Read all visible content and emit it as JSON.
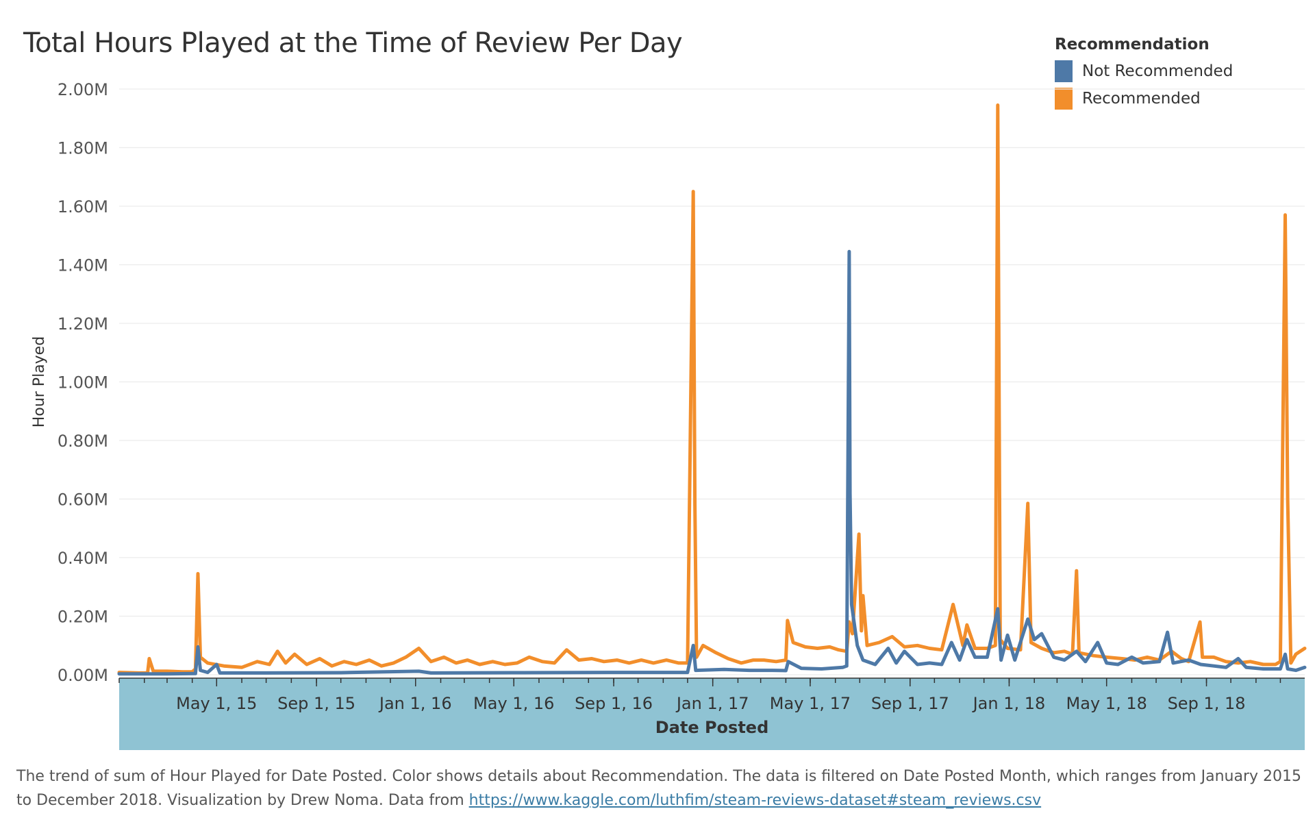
{
  "title": "Total Hours Played at the Time of Review Per Day",
  "legend": {
    "title": "Recommendation",
    "items": [
      {
        "label": "Not Recommended",
        "color": "#4e79a7"
      },
      {
        "label": "Recommended",
        "color": "#f28e2b"
      }
    ]
  },
  "caption": {
    "text": "The trend of sum of Hour Played for Date Posted.  Color shows details about Recommendation. The data is filtered on Date Posted Month, which ranges from January 2015 to December 2018. Visualization by Drew Noma. Data from ",
    "link": "https://www.kaggle.com/luthfim/steam-reviews-dataset#steam_reviews.csv"
  },
  "chart_data": {
    "type": "line",
    "title": "Total Hours Played at the Time of Review Per Day",
    "xlabel": "Date Posted",
    "ylabel": "Hour Played",
    "xlim": [
      "2015-01-01",
      "2018-12-31"
    ],
    "ylim": [
      0,
      2000000
    ],
    "y_ticks": [
      0,
      200000,
      400000,
      600000,
      800000,
      1000000,
      1200000,
      1400000,
      1600000,
      1800000,
      2000000
    ],
    "y_tick_labels": [
      "0.00M",
      "0.20M",
      "0.40M",
      "0.60M",
      "0.80M",
      "1.00M",
      "1.20M",
      "1.40M",
      "1.60M",
      "1.80M",
      "2.00M"
    ],
    "x_ticks": [
      "2015-05-01",
      "2015-09-01",
      "2016-01-01",
      "2016-05-01",
      "2016-09-01",
      "2017-01-01",
      "2017-05-01",
      "2017-09-01",
      "2018-01-01",
      "2018-05-01",
      "2018-09-01"
    ],
    "x_tick_labels": [
      "May 1, 15",
      "Sep 1, 15",
      "Jan 1, 16",
      "May 1, 16",
      "Sep 1, 16",
      "Jan 1, 17",
      "May 1, 17",
      "Sep 1, 17",
      "Jan 1, 18",
      "May 1, 18",
      "Sep 1, 18"
    ],
    "grid": "horizontal",
    "legend_position": "top-right",
    "series": [
      {
        "name": "Recommended",
        "color": "#f28e2b",
        "points": [
          [
            "2015-01-01",
            8000
          ],
          [
            "2015-01-25",
            6000
          ],
          [
            "2015-02-05",
            6000
          ],
          [
            "2015-02-07",
            55000
          ],
          [
            "2015-02-12",
            12000
          ],
          [
            "2015-03-01",
            12000
          ],
          [
            "2015-03-20",
            10000
          ],
          [
            "2015-04-01",
            10000
          ],
          [
            "2015-04-05",
            20000
          ],
          [
            "2015-04-08",
            345000
          ],
          [
            "2015-04-11",
            60000
          ],
          [
            "2015-04-20",
            40000
          ],
          [
            "2015-05-10",
            30000
          ],
          [
            "2015-06-01",
            25000
          ],
          [
            "2015-06-20",
            45000
          ],
          [
            "2015-07-05",
            35000
          ],
          [
            "2015-07-15",
            80000
          ],
          [
            "2015-07-25",
            40000
          ],
          [
            "2015-08-05",
            70000
          ],
          [
            "2015-08-20",
            35000
          ],
          [
            "2015-09-05",
            55000
          ],
          [
            "2015-09-20",
            30000
          ],
          [
            "2015-10-05",
            45000
          ],
          [
            "2015-10-20",
            35000
          ],
          [
            "2015-11-05",
            50000
          ],
          [
            "2015-11-20",
            30000
          ],
          [
            "2015-12-05",
            40000
          ],
          [
            "2015-12-20",
            60000
          ],
          [
            "2016-01-05",
            90000
          ],
          [
            "2016-01-20",
            45000
          ],
          [
            "2016-02-05",
            60000
          ],
          [
            "2016-02-20",
            40000
          ],
          [
            "2016-03-05",
            50000
          ],
          [
            "2016-03-20",
            35000
          ],
          [
            "2016-04-05",
            45000
          ],
          [
            "2016-04-20",
            35000
          ],
          [
            "2016-05-05",
            40000
          ],
          [
            "2016-05-20",
            60000
          ],
          [
            "2016-06-05",
            45000
          ],
          [
            "2016-06-20",
            40000
          ],
          [
            "2016-07-05",
            85000
          ],
          [
            "2016-07-20",
            50000
          ],
          [
            "2016-08-05",
            55000
          ],
          [
            "2016-08-20",
            45000
          ],
          [
            "2016-09-05",
            50000
          ],
          [
            "2016-09-20",
            40000
          ],
          [
            "2016-10-05",
            50000
          ],
          [
            "2016-10-20",
            40000
          ],
          [
            "2016-11-05",
            50000
          ],
          [
            "2016-11-20",
            40000
          ],
          [
            "2016-12-01",
            40000
          ],
          [
            "2016-12-08",
            1650000
          ],
          [
            "2016-12-10",
            580000
          ],
          [
            "2016-12-12",
            60000
          ],
          [
            "2016-12-20",
            100000
          ],
          [
            "2017-01-05",
            75000
          ],
          [
            "2017-01-20",
            55000
          ],
          [
            "2017-02-05",
            40000
          ],
          [
            "2017-02-20",
            50000
          ],
          [
            "2017-03-05",
            50000
          ],
          [
            "2017-03-20",
            45000
          ],
          [
            "2017-04-01",
            50000
          ],
          [
            "2017-04-03",
            185000
          ],
          [
            "2017-04-10",
            110000
          ],
          [
            "2017-04-25",
            95000
          ],
          [
            "2017-05-10",
            90000
          ],
          [
            "2017-05-25",
            95000
          ],
          [
            "2017-06-05",
            85000
          ],
          [
            "2017-06-15",
            80000
          ],
          [
            "2017-06-18",
            180000
          ],
          [
            "2017-06-22",
            140000
          ],
          [
            "2017-06-30",
            480000
          ],
          [
            "2017-07-03",
            150000
          ],
          [
            "2017-07-05",
            270000
          ],
          [
            "2017-07-10",
            100000
          ],
          [
            "2017-07-25",
            110000
          ],
          [
            "2017-08-10",
            130000
          ],
          [
            "2017-08-25",
            95000
          ],
          [
            "2017-09-10",
            100000
          ],
          [
            "2017-09-25",
            90000
          ],
          [
            "2017-10-10",
            85000
          ],
          [
            "2017-10-24",
            240000
          ],
          [
            "2017-11-05",
            100000
          ],
          [
            "2017-11-10",
            170000
          ],
          [
            "2017-11-20",
            90000
          ],
          [
            "2017-12-05",
            90000
          ],
          [
            "2017-12-15",
            100000
          ],
          [
            "2017-12-18",
            1945000
          ],
          [
            "2017-12-21",
            120000
          ],
          [
            "2017-12-30",
            90000
          ],
          [
            "2018-01-15",
            85000
          ],
          [
            "2018-01-24",
            585000
          ],
          [
            "2018-01-28",
            110000
          ],
          [
            "2018-02-10",
            90000
          ],
          [
            "2018-02-25",
            75000
          ],
          [
            "2018-03-10",
            80000
          ],
          [
            "2018-03-20",
            70000
          ],
          [
            "2018-03-25",
            355000
          ],
          [
            "2018-03-28",
            75000
          ],
          [
            "2018-04-15",
            65000
          ],
          [
            "2018-05-01",
            60000
          ],
          [
            "2018-05-20",
            55000
          ],
          [
            "2018-06-05",
            50000
          ],
          [
            "2018-06-20",
            60000
          ],
          [
            "2018-07-05",
            50000
          ],
          [
            "2018-07-20",
            80000
          ],
          [
            "2018-08-01",
            55000
          ],
          [
            "2018-08-10",
            45000
          ],
          [
            "2018-08-24",
            180000
          ],
          [
            "2018-08-27",
            60000
          ],
          [
            "2018-09-10",
            60000
          ],
          [
            "2018-09-25",
            45000
          ],
          [
            "2018-10-10",
            40000
          ],
          [
            "2018-10-25",
            45000
          ],
          [
            "2018-11-10",
            35000
          ],
          [
            "2018-11-25",
            35000
          ],
          [
            "2018-12-01",
            45000
          ],
          [
            "2018-12-07",
            1570000
          ],
          [
            "2018-12-10",
            600000
          ],
          [
            "2018-12-14",
            40000
          ],
          [
            "2018-12-20",
            70000
          ],
          [
            "2018-12-31",
            90000
          ]
        ]
      },
      {
        "name": "Not Recommended",
        "color": "#4e79a7",
        "points": [
          [
            "2015-01-01",
            3000
          ],
          [
            "2015-03-01",
            3000
          ],
          [
            "2015-04-05",
            4000
          ],
          [
            "2015-04-08",
            95000
          ],
          [
            "2015-04-11",
            15000
          ],
          [
            "2015-04-20",
            8000
          ],
          [
            "2015-05-01",
            35000
          ],
          [
            "2015-05-05",
            6000
          ],
          [
            "2015-07-01",
            6000
          ],
          [
            "2015-10-01",
            7000
          ],
          [
            "2016-01-05",
            12000
          ],
          [
            "2016-01-20",
            6000
          ],
          [
            "2016-05-01",
            7000
          ],
          [
            "2016-09-01",
            8000
          ],
          [
            "2016-12-01",
            8000
          ],
          [
            "2016-12-08",
            100000
          ],
          [
            "2016-12-11",
            15000
          ],
          [
            "2017-01-15",
            18000
          ],
          [
            "2017-02-15",
            15000
          ],
          [
            "2017-03-15",
            15000
          ],
          [
            "2017-04-01",
            14000
          ],
          [
            "2017-04-04",
            45000
          ],
          [
            "2017-04-20",
            22000
          ],
          [
            "2017-05-15",
            20000
          ],
          [
            "2017-06-10",
            25000
          ],
          [
            "2017-06-15",
            30000
          ],
          [
            "2017-06-18",
            1445000
          ],
          [
            "2017-06-19",
            620000
          ],
          [
            "2017-06-21",
            240000
          ],
          [
            "2017-06-28",
            100000
          ],
          [
            "2017-07-05",
            50000
          ],
          [
            "2017-07-20",
            35000
          ],
          [
            "2017-08-05",
            90000
          ],
          [
            "2017-08-15",
            40000
          ],
          [
            "2017-08-25",
            80000
          ],
          [
            "2017-09-10",
            35000
          ],
          [
            "2017-09-25",
            40000
          ],
          [
            "2017-10-10",
            35000
          ],
          [
            "2017-10-22",
            110000
          ],
          [
            "2017-11-01",
            50000
          ],
          [
            "2017-11-10",
            120000
          ],
          [
            "2017-11-20",
            60000
          ],
          [
            "2017-12-05",
            60000
          ],
          [
            "2017-12-18",
            225000
          ],
          [
            "2017-12-22",
            50000
          ],
          [
            "2017-12-30",
            135000
          ],
          [
            "2018-01-08",
            50000
          ],
          [
            "2018-01-24",
            190000
          ],
          [
            "2018-02-01",
            120000
          ],
          [
            "2018-02-10",
            140000
          ],
          [
            "2018-02-25",
            60000
          ],
          [
            "2018-03-10",
            50000
          ],
          [
            "2018-03-25",
            80000
          ],
          [
            "2018-04-05",
            45000
          ],
          [
            "2018-04-20",
            110000
          ],
          [
            "2018-05-01",
            40000
          ],
          [
            "2018-05-15",
            35000
          ],
          [
            "2018-06-01",
            60000
          ],
          [
            "2018-06-15",
            40000
          ],
          [
            "2018-07-05",
            45000
          ],
          [
            "2018-07-15",
            145000
          ],
          [
            "2018-07-22",
            40000
          ],
          [
            "2018-08-10",
            50000
          ],
          [
            "2018-08-25",
            35000
          ],
          [
            "2018-09-10",
            30000
          ],
          [
            "2018-09-25",
            25000
          ],
          [
            "2018-10-10",
            55000
          ],
          [
            "2018-10-20",
            25000
          ],
          [
            "2018-11-10",
            20000
          ],
          [
            "2018-11-25",
            20000
          ],
          [
            "2018-12-01",
            20000
          ],
          [
            "2018-12-07",
            70000
          ],
          [
            "2018-12-10",
            20000
          ],
          [
            "2018-12-20",
            15000
          ],
          [
            "2018-12-31",
            25000
          ]
        ]
      }
    ]
  }
}
